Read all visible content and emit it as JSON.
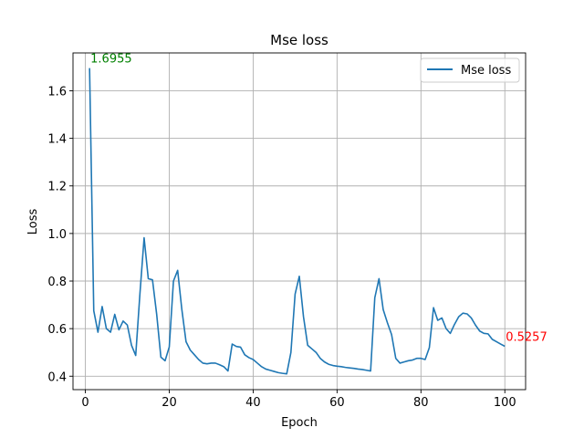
{
  "chart_data": {
    "type": "line",
    "title": "Mse loss",
    "xlabel": "Epoch",
    "ylabel": "Loss",
    "xlim": [
      -2.95,
      104.95
    ],
    "ylim": [
      0.3435,
      1.7591
    ],
    "xticks": [
      0,
      20,
      40,
      60,
      80,
      100
    ],
    "yticks": [
      0.4,
      0.6,
      0.8,
      1.0,
      1.2,
      1.4,
      1.6
    ],
    "ytick_labels": [
      "0.4",
      "0.6",
      "0.8",
      "1.0",
      "1.2",
      "1.4",
      "1.6"
    ],
    "grid": true,
    "legend_position": "top-right",
    "series": [
      {
        "name": "Mse loss",
        "color": "#1f77b4",
        "x": [
          1,
          2,
          3,
          4,
          5,
          6,
          7,
          8,
          9,
          10,
          11,
          12,
          13,
          14,
          15,
          16,
          17,
          18,
          19,
          20,
          21,
          22,
          23,
          24,
          25,
          26,
          27,
          28,
          29,
          30,
          31,
          32,
          33,
          34,
          35,
          36,
          37,
          38,
          39,
          40,
          41,
          42,
          43,
          44,
          45,
          46,
          47,
          48,
          49,
          50,
          51,
          52,
          53,
          54,
          55,
          56,
          57,
          58,
          59,
          60,
          61,
          62,
          63,
          64,
          65,
          66,
          67,
          68,
          69,
          70,
          71,
          72,
          73,
          74,
          75,
          76,
          77,
          78,
          79,
          80,
          81,
          82,
          83,
          84,
          85,
          86,
          87,
          88,
          89,
          90,
          91,
          92,
          93,
          94,
          95,
          96,
          97,
          98,
          99,
          100
        ],
        "y": [
          1.6955,
          0.675,
          0.585,
          0.693,
          0.6,
          0.585,
          0.66,
          0.595,
          0.632,
          0.615,
          0.53,
          0.487,
          0.745,
          0.982,
          0.81,
          0.805,
          0.66,
          0.48,
          0.465,
          0.523,
          0.8,
          0.845,
          0.68,
          0.545,
          0.51,
          0.49,
          0.47,
          0.455,
          0.452,
          0.455,
          0.455,
          0.448,
          0.44,
          0.422,
          0.535,
          0.525,
          0.522,
          0.49,
          0.478,
          0.47,
          0.455,
          0.44,
          0.43,
          0.425,
          0.42,
          0.415,
          0.412,
          0.41,
          0.5,
          0.745,
          0.82,
          0.65,
          0.53,
          0.515,
          0.5,
          0.475,
          0.46,
          0.45,
          0.445,
          0.442,
          0.44,
          0.437,
          0.435,
          0.433,
          0.43,
          0.428,
          0.425,
          0.422,
          0.73,
          0.81,
          0.68,
          0.625,
          0.575,
          0.475,
          0.455,
          0.46,
          0.465,
          0.468,
          0.475,
          0.475,
          0.47,
          0.52,
          0.688,
          0.635,
          0.645,
          0.6,
          0.58,
          0.618,
          0.65,
          0.665,
          0.662,
          0.645,
          0.615,
          0.59,
          0.58,
          0.578,
          0.555,
          0.545,
          0.535,
          0.5257
        ]
      }
    ],
    "annotations": [
      {
        "text": "1.6955",
        "x": 1,
        "y": 1.6955,
        "color": "#008000"
      },
      {
        "text": "0.5257",
        "x": 100,
        "y": 0.5257,
        "color": "#ff0000"
      }
    ]
  }
}
